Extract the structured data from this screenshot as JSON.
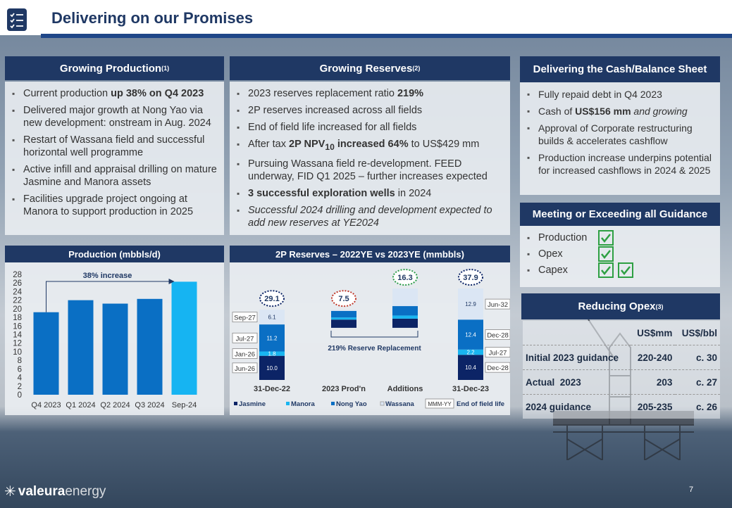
{
  "header": {
    "title": "Delivering on our Promises"
  },
  "production": {
    "title": "Growing Production",
    "note": "(1)",
    "bullets": [
      [
        {
          "t": "Current production "
        },
        {
          "t": "up 38% on Q4 2023",
          "bold": true
        }
      ],
      [
        {
          "t": "Delivered major growth at Nong Yao via new development: onstream in Aug. 2024"
        }
      ],
      [
        {
          "t": "Restart of Wassana field and successful horizontal well programme"
        }
      ],
      [
        {
          "t": "Active infill and appraisal drilling on mature Jasmine and Manora assets"
        }
      ],
      [
        {
          "t": "Facilities upgrade project ongoing at Manora to support production in 2025"
        }
      ]
    ]
  },
  "reserves": {
    "title": "Growing Reserves",
    "note": "(2)",
    "bullets": [
      [
        {
          "t": "2023 reserves replacement ratio "
        },
        {
          "t": "219%",
          "bold": true
        }
      ],
      [
        {
          "t": "2P reserves increased across all fields"
        }
      ],
      [
        {
          "t": "End of field life increased for all fields"
        }
      ],
      [
        {
          "t": "After tax "
        },
        {
          "t": "2P NPV",
          "bold": true
        },
        {
          "t": "10",
          "bold": true,
          "sub": true
        },
        {
          "t": " increased 64%",
          "bold": true
        },
        {
          "t": " to US$429 mm"
        }
      ],
      [
        {
          "t": "Pursuing Wassana field re-development.  FEED underway, FID Q1 2025 – further increases expected"
        }
      ],
      [
        {
          "t": "3 successful exploration wells",
          "bold": true
        },
        {
          "t": " in 2024"
        }
      ],
      [
        {
          "t": "Successful 2024 drilling and development expected to add new reserves at YE2024",
          "italic": true
        }
      ]
    ]
  },
  "cash": {
    "title": "Delivering the Cash/Balance Sheet",
    "bullets": [
      [
        {
          "t": "Fully repaid debt in Q4 2023"
        }
      ],
      [
        {
          "t": "Cash of "
        },
        {
          "t": "US$156 mm",
          "bold": true
        },
        {
          "t": " and growing",
          "italic": true
        }
      ],
      [
        {
          "t": "Approval of Corporate restructuring builds & accelerates cashflow"
        }
      ],
      [
        {
          "t": "Production increase underpins potential for increased cashflows in 2024 & 2025"
        }
      ]
    ]
  },
  "guidance": {
    "title": "Meeting or Exceeding all Guidance",
    "items": [
      {
        "label": "Production",
        "checks": 1
      },
      {
        "label": "Opex",
        "checks": 1
      },
      {
        "label": "Capex",
        "checks": 2
      }
    ]
  },
  "opex": {
    "title": "Reducing Opex",
    "note": "(3)",
    "columns": [
      "US$mm",
      "US$/bbl"
    ],
    "rows": [
      [
        "Initial 2023 guidance",
        "220-240",
        "c. 30"
      ],
      [
        "Actual  2023",
        "203",
        "c. 27"
      ],
      [
        "2024 guidance",
        "205-235",
        "c. 26"
      ]
    ]
  },
  "chart_data": [
    {
      "type": "bar",
      "title": "Production (mbbls/d)",
      "categories": [
        "Q4 2023",
        "Q1 2024",
        "Q2 2024",
        "Q3 2024",
        "Sep-24"
      ],
      "values": [
        19.2,
        22,
        21.2,
        22.3,
        26.3
      ],
      "colors": [
        "#0a6fc4",
        "#0a6fc4",
        "#0a6fc4",
        "#0a6fc4",
        "#16b4f2"
      ],
      "ylim": [
        0,
        28
      ],
      "yticks": [
        0,
        2,
        4,
        6,
        8,
        10,
        12,
        14,
        16,
        18,
        20,
        22,
        24,
        26,
        28
      ],
      "annotation": "38% increase"
    },
    {
      "type": "waterfall",
      "title": "2P Reserves – 2022YE vs 2023YE (mmbbls)",
      "categories": [
        "31-Dec-22",
        "2023 Prod'n",
        "Additions",
        "31-Dec-23"
      ],
      "measures": [
        "total",
        "decrease",
        "increase",
        "total"
      ],
      "series": [
        {
          "name": "Jasmine",
          "color": "#0c2466",
          "values": [
            10.0,
            3.4,
            3.8,
            10.4
          ],
          "value_labels": [
            "10.0",
            null,
            null,
            "10.4"
          ]
        },
        {
          "name": "Manora",
          "color": "#19b5f0",
          "values": [
            1.8,
            0.9,
            1.3,
            2.2
          ],
          "value_labels": [
            "1.8",
            null,
            null,
            "2.2"
          ]
        },
        {
          "name": "Nong Yao",
          "color": "#0a6fc4",
          "values": [
            11.2,
            2.7,
            3.9,
            12.4
          ],
          "value_labels": [
            "11.2",
            null,
            null,
            "12.4"
          ]
        },
        {
          "name": "Wassana",
          "color": "#dbe6f4",
          "values": [
            6.1,
            0.5,
            7.3,
            12.9
          ],
          "value_labels": [
            "6.1",
            null,
            null,
            "12.9"
          ]
        }
      ],
      "totals": [
        29.1,
        7.5,
        16.3,
        37.9
      ],
      "total_colors": [
        "#0c2466",
        "#c0392b",
        "#2e9e4a",
        "#0c2466"
      ],
      "end_of_field_life": [
        [
          "Jun-26",
          "Jan-26",
          "Jul-27",
          "Sep-27"
        ],
        null,
        null,
        [
          "Dec-28",
          "Jul-27",
          "Dec-28",
          "Jun-32"
        ]
      ],
      "annotation": "219% Reserve Replacement",
      "legend_key": "MMM-YY",
      "legend_key_text": "End of field life"
    }
  ],
  "footer": {
    "logo": "valeura",
    "logo_suffix": "energy",
    "page": "7"
  }
}
